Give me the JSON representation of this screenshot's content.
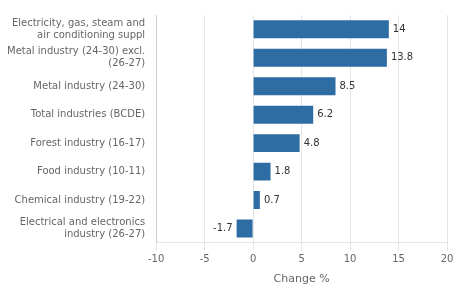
{
  "chart_data": {
    "type": "bar",
    "orientation": "horizontal",
    "categories": [
      "Electricity, gas, steam and air conditioning suppl",
      "Metal industry (24-30) excl. (26-27)",
      "Metal industry (24-30)",
      "Total industries (BCDE)",
      "Forest industry (16-17)",
      "Food industry (10-11)",
      "Chemical industry (19-22)",
      "Electrical and electronics industry (26-27)"
    ],
    "values": [
      14.0,
      13.8,
      8.5,
      6.2,
      4.8,
      1.8,
      0.7,
      -1.7
    ],
    "color": "#2E6DA4",
    "xlabel": "Change %",
    "xlim": [
      -10,
      20
    ],
    "xticks": [
      -10,
      -5,
      0,
      5,
      10,
      15,
      20
    ],
    "data_labels": true,
    "grid": true
  }
}
